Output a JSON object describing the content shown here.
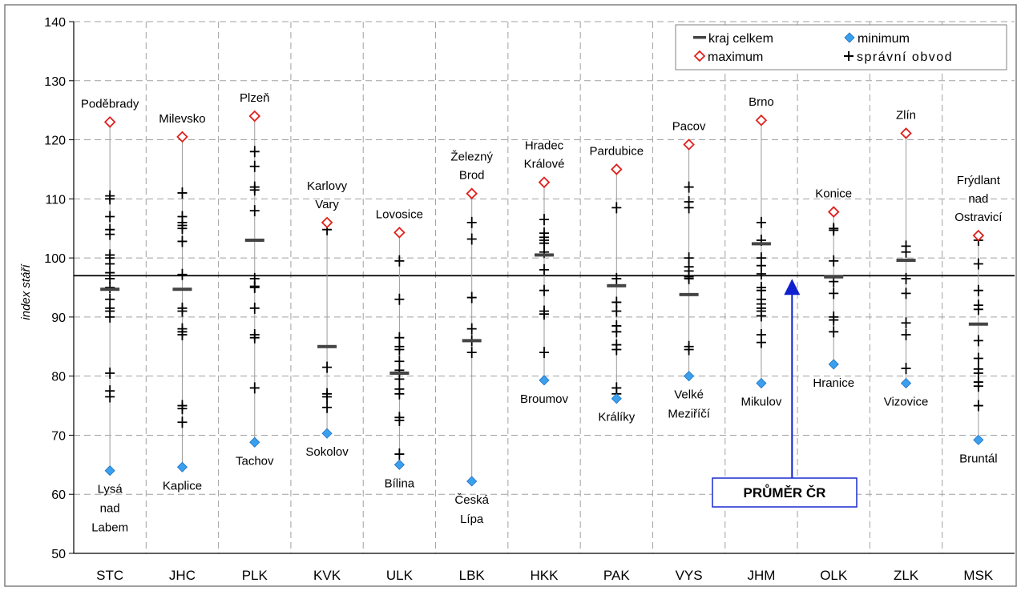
{
  "chart_data": {
    "type": "scatter",
    "ylabel": "index stáří",
    "ylim": [
      50,
      140
    ],
    "yticks": [
      50,
      60,
      70,
      80,
      90,
      100,
      110,
      120,
      130,
      140
    ],
    "grid": true,
    "legend_position": "top-right",
    "reference_line": {
      "value": 97,
      "label": "PRŮMĚR ČR"
    },
    "categories": [
      "STC",
      "JHC",
      "PLK",
      "KVK",
      "ULK",
      "LBK",
      "HKK",
      "PAK",
      "VYS",
      "JHM",
      "OLK",
      "ZLK",
      "MSK"
    ],
    "legend": {
      "kraj": "kraj celkem",
      "minimum": "minimum",
      "maximum": "maximum",
      "obvod": "správní obvod"
    },
    "colors": {
      "maximum": "#e0201b",
      "minimum": "#3aa0ee",
      "average_line": "#000000",
      "arrow": "#1020d0",
      "grid": "#a0a0a0",
      "whisker": "#9a9a9a"
    },
    "series": [
      {
        "name": "kraj celkem",
        "values": [
          94.7,
          94.7,
          103,
          85,
          80.5,
          86,
          100.5,
          95.3,
          93.8,
          102.4,
          96.8,
          99.6,
          88.8
        ]
      },
      {
        "name": "minimum",
        "values": [
          64,
          64.6,
          68.8,
          70.3,
          65,
          62.2,
          79.3,
          76.2,
          80,
          78.8,
          82,
          78.8,
          69.2
        ]
      },
      {
        "name": "maximum",
        "values": [
          123,
          120.5,
          124,
          106,
          104.3,
          110.9,
          112.8,
          115,
          119.2,
          123.3,
          107.8,
          121.1,
          103.8
        ]
      },
      {
        "name": "správní obvod",
        "values": [
          [
            110.5,
            110,
            107,
            104.8,
            104,
            100.5,
            100,
            99,
            97.5,
            96.5,
            95,
            93,
            91.5,
            91,
            90,
            80.5,
            77.5,
            76.5
          ],
          [
            111,
            107,
            106,
            105.5,
            105,
            102.8,
            97.2,
            91.5,
            91,
            88,
            87.5,
            87,
            75,
            74.5,
            72.2
          ],
          [
            118,
            115.5,
            112,
            111.5,
            108,
            96.5,
            95.2,
            95,
            91.5,
            87,
            86.5,
            78
          ],
          [
            104.8,
            81.5,
            77,
            76.5,
            74.7
          ],
          [
            99.5,
            93,
            86.5,
            85,
            84.5,
            82.5,
            81,
            79.5,
            77.8,
            77,
            73,
            72.5,
            66.8
          ],
          [
            106,
            103.2,
            93.3,
            88,
            86,
            84
          ],
          [
            106.5,
            104.2,
            103.5,
            103,
            102.5,
            101,
            98,
            94.5,
            91,
            90.5,
            84
          ],
          [
            108.5,
            96.5,
            92.5,
            91,
            88.5,
            87.5,
            85.3,
            84.5,
            78,
            77
          ],
          [
            112,
            109.5,
            108.5,
            100,
            98.5,
            97.8,
            96.5,
            96.8,
            85,
            84.5
          ],
          [
            106,
            103,
            100,
            98.7,
            97.3,
            95,
            94.5,
            93,
            92.2,
            91.5,
            91,
            90.2,
            87,
            85.7
          ],
          [
            105,
            104.7,
            99.5,
            96,
            94,
            90,
            89.5,
            87.5
          ],
          [
            102,
            101,
            96.5,
            94,
            89,
            87,
            81.3
          ],
          [
            103,
            99,
            94.5,
            92,
            91.3,
            86,
            83,
            81.2,
            80.5,
            79,
            78.3,
            75
          ]
        ]
      }
    ],
    "max_labels": [
      [
        "Poděbrady"
      ],
      [
        "Milevsko"
      ],
      [
        "Plzeň"
      ],
      [
        "Karlovy",
        "Vary"
      ],
      [
        "Lovosice"
      ],
      [
        "Železný",
        "Brod"
      ],
      [
        "Hradec",
        "Králové"
      ],
      [
        "Pardubice"
      ],
      [
        "Pacov"
      ],
      [
        "Brno"
      ],
      [
        "Konice"
      ],
      [
        "Zlín"
      ],
      [
        "Frýdlant",
        "nad",
        "Ostravicí"
      ]
    ],
    "min_labels": [
      [
        "Lysá",
        "nad",
        "Labem"
      ],
      [
        "Kaplice"
      ],
      [
        "Tachov"
      ],
      [
        "Sokolov"
      ],
      [
        "Bílina"
      ],
      [
        "Česká",
        "Lípa"
      ],
      [
        "Broumov"
      ],
      [
        "Králíky"
      ],
      [
        "Velké",
        "Meziříčí"
      ],
      [
        "Mikulov"
      ],
      [
        "Hranice"
      ],
      [
        "Vizovice"
      ],
      [
        "Bruntál"
      ]
    ]
  }
}
